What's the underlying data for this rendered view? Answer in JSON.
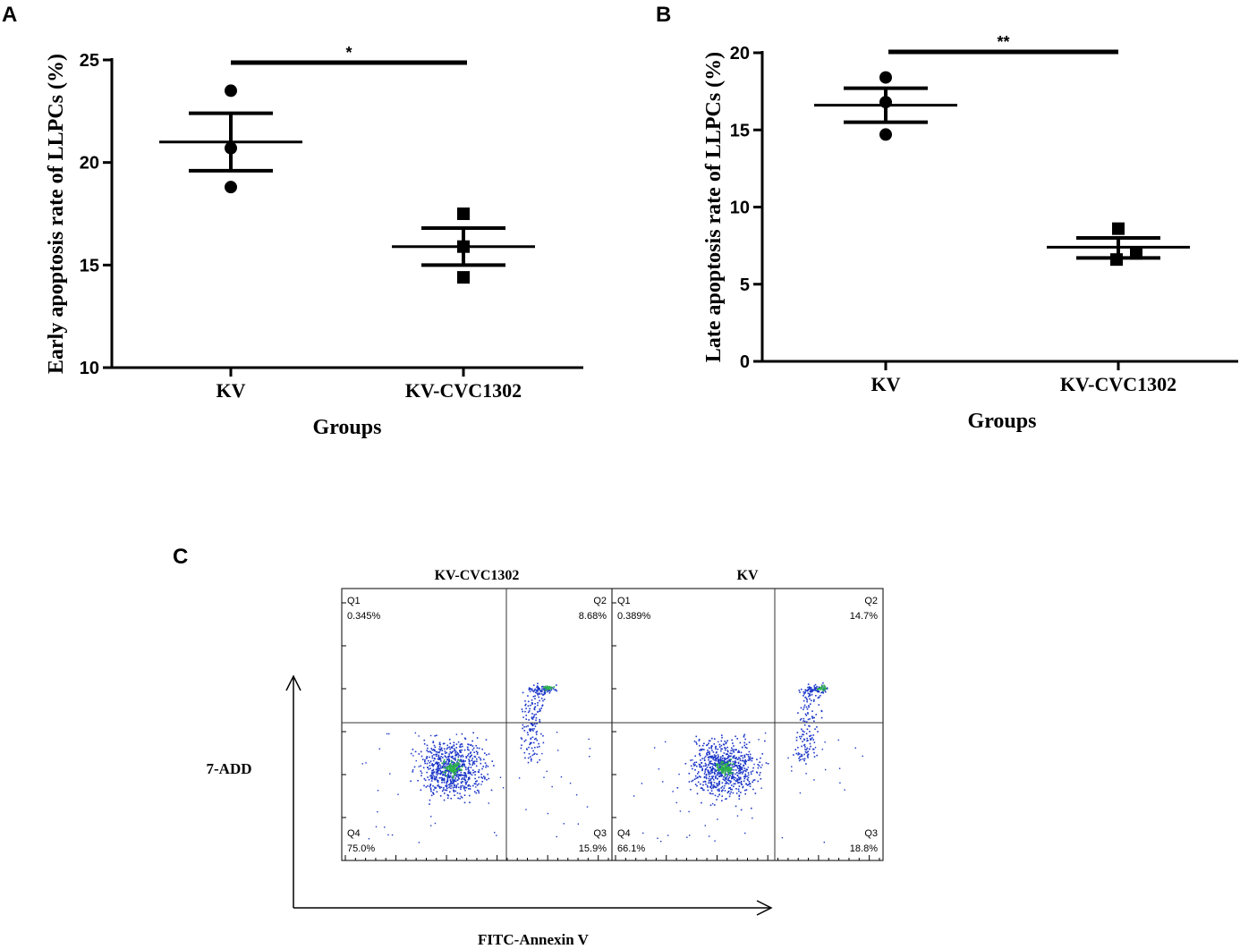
{
  "colors": {
    "ink": "#000000",
    "dot_blue": "#1a35c8",
    "dot_green": "#2fb34a",
    "background": "#ffffff"
  },
  "chart_data": [
    {
      "panel": "A",
      "type": "scatter",
      "ylabel": "Early apoptosis rate of LLPCs (%)",
      "xlabel": "Groups",
      "ylim": [
        10,
        25
      ],
      "yticks": [
        10,
        15,
        20,
        25
      ],
      "categories": [
        "KV",
        "KV-CVC1302"
      ],
      "series": [
        {
          "name": "KV",
          "marker": "circle",
          "points": [
            23.5,
            20.7,
            18.8
          ],
          "mean": 21.0,
          "sem_upper": 22.4,
          "sem_lower": 19.6
        },
        {
          "name": "KV-CVC1302",
          "marker": "square",
          "points": [
            17.5,
            15.9,
            14.4
          ],
          "mean": 15.9,
          "sem_upper": 16.8,
          "sem_lower": 15.0
        }
      ],
      "significance": "*"
    },
    {
      "panel": "B",
      "type": "scatter",
      "ylabel": "Late apoptosis rate of LLPCs (%)",
      "xlabel": "Groups",
      "ylim": [
        0,
        20
      ],
      "yticks": [
        0,
        5,
        10,
        15,
        20
      ],
      "categories": [
        "KV",
        "KV-CVC1302"
      ],
      "series": [
        {
          "name": "KV",
          "marker": "circle",
          "points": [
            18.4,
            16.8,
            14.7
          ],
          "mean": 16.6,
          "sem_upper": 17.7,
          "sem_lower": 15.5
        },
        {
          "name": "KV-CVC1302",
          "marker": "square",
          "points": [
            8.6,
            7.0,
            6.6
          ],
          "mean": 7.4,
          "sem_upper": 8.0,
          "sem_lower": 6.7
        }
      ],
      "significance": "**"
    },
    {
      "panel": "C",
      "type": "scatter",
      "subtype": "flow-cytometry-quadrant",
      "xlabel": "FITC-Annexin V",
      "ylabel": "7-ADD",
      "plots": [
        {
          "title": "KV-CVC1302",
          "quadrants": [
            {
              "name": "Q1",
              "value": "0.345%"
            },
            {
              "name": "Q2",
              "value": "8.68%"
            },
            {
              "name": "Q3",
              "value": "15.9%"
            },
            {
              "name": "Q4",
              "value": "75.0%"
            }
          ]
        },
        {
          "title": "KV",
          "quadrants": [
            {
              "name": "Q1",
              "value": "0.389%"
            },
            {
              "name": "Q2",
              "value": "14.7%"
            },
            {
              "name": "Q3",
              "value": "18.8%"
            },
            {
              "name": "Q4",
              "value": "66.1%"
            }
          ]
        }
      ]
    }
  ]
}
